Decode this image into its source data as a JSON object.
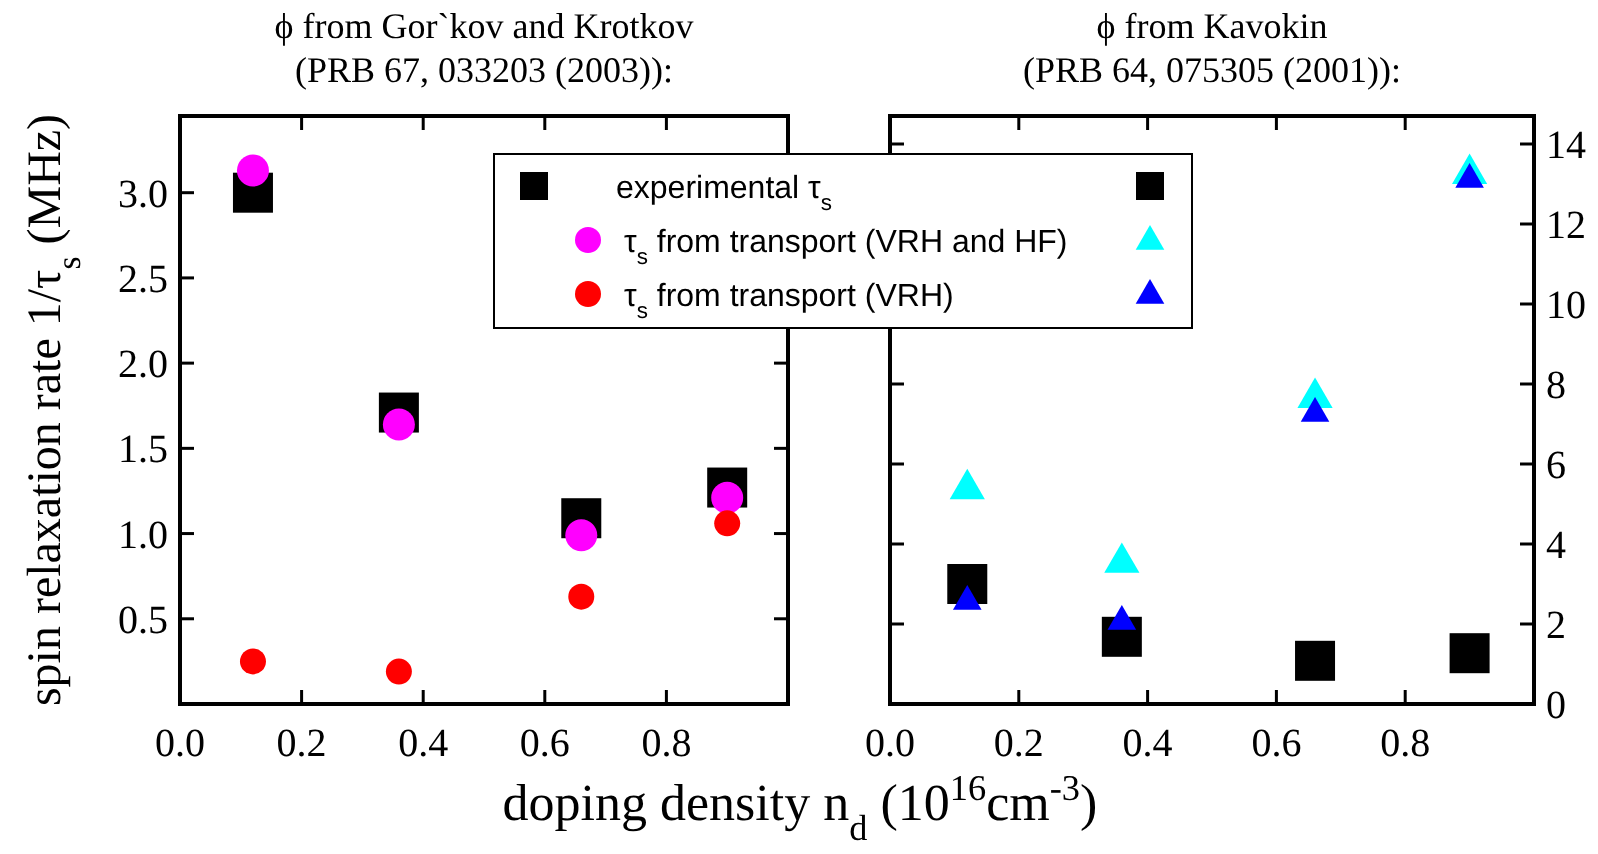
{
  "chart_data": [
    {
      "type": "scatter",
      "title": "ϕ from Gor`kov and Krotkov",
      "subtitle": "(PRB 67, 033203 (2003)):",
      "ylabel": "spin relaxation rate 1/τ$_{s}$ (MHz)",
      "xlabel": "doping density n$_{d}$ (10$^{16}$cm$^{-3}$)",
      "x": [
        0.12,
        0.36,
        0.66,
        0.9
      ],
      "xlim": [
        0,
        1
      ],
      "xticks": [
        {
          "value": 0,
          "label": "0.0"
        },
        0.2,
        0.4,
        0.6,
        0.8
      ],
      "ylim": [
        0,
        3.45
      ],
      "yticks": [
        0.5,
        {
          "value": 1,
          "label": "1.0"
        },
        1.5,
        {
          "value": 2,
          "label": "2.0"
        },
        2.5,
        {
          "value": 3,
          "label": "3.0"
        }
      ],
      "legend": "top right",
      "grid": false,
      "series": [
        {
          "name": "experimental τ$_{s}$",
          "color": "#000000",
          "marker": "square",
          "values": [
            3.0,
            1.71,
            1.09,
            1.27
          ]
        },
        {
          "name": "τ$_{s}$ from transport (VRH and HF)",
          "color": "#ff00ff",
          "marker": "circle",
          "values": [
            3.13,
            1.64,
            0.99,
            1.21
          ]
        },
        {
          "name": "τ$_{s}$ from transport (VRH)",
          "color": "#ff0000",
          "marker": "circle",
          "values": [
            0.25,
            0.19,
            0.63,
            1.06
          ]
        }
      ]
    },
    {
      "type": "scatter",
      "title": "ϕ from Kavokin",
      "subtitle": "(PRB 64, 075305 (2001)):",
      "x": [
        0.12,
        0.36,
        0.66,
        0.9
      ],
      "xlim": [
        0,
        1
      ],
      "xticks": [
        {
          "value": 0,
          "label": "0.0"
        },
        0.2,
        0.4,
        0.6,
        0.8
      ],
      "y2lim": [
        0,
        14.7
      ],
      "y2ticks": [
        0,
        2,
        4,
        6,
        8,
        10,
        12,
        14
      ],
      "grid": false,
      "series": [
        {
          "color": "#000000",
          "marker": "square",
          "axis": "y2",
          "values": [
            3.0,
            1.68,
            1.08,
            1.27
          ]
        },
        {
          "color": "#00ffff",
          "marker": "triangle",
          "axis": "y2",
          "values": [
            5.42,
            3.58,
            7.7,
            13.3
          ]
        },
        {
          "color": "#0000ff",
          "marker": "triangle",
          "axis": "y2",
          "values": [
            2.6,
            2.1,
            7.3,
            13.15
          ]
        }
      ]
    }
  ]
}
